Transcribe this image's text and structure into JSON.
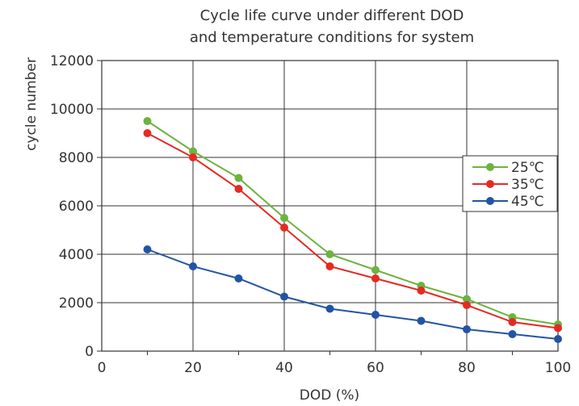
{
  "chart_data": {
    "type": "line",
    "title": [
      "Cycle life curve under different DOD",
      "and temperature conditions for system"
    ],
    "xlabel": "DOD (%)",
    "ylabel": "cycle number",
    "xlim": [
      0,
      100
    ],
    "ylim": [
      0,
      12000
    ],
    "x_ticks": [
      0,
      20,
      40,
      60,
      80,
      100
    ],
    "y_ticks": [
      0,
      2000,
      4000,
      6000,
      8000,
      10000,
      12000
    ],
    "grid": true,
    "legend_position": "right",
    "x": [
      10,
      20,
      30,
      40,
      50,
      60,
      70,
      80,
      90,
      100
    ],
    "series": [
      {
        "name": "25℃",
        "color": "#6db33f",
        "values": [
          9500,
          8250,
          7150,
          5500,
          4000,
          3350,
          2700,
          2150,
          1400,
          1100
        ]
      },
      {
        "name": "35℃",
        "color": "#e32b22",
        "values": [
          9000,
          8000,
          6700,
          5100,
          3500,
          3000,
          2500,
          1900,
          1200,
          950
        ]
      },
      {
        "name": "45℃",
        "color": "#2354a3",
        "values": [
          4200,
          3500,
          3000,
          2250,
          1750,
          1500,
          1250,
          900,
          700,
          500
        ]
      }
    ]
  }
}
